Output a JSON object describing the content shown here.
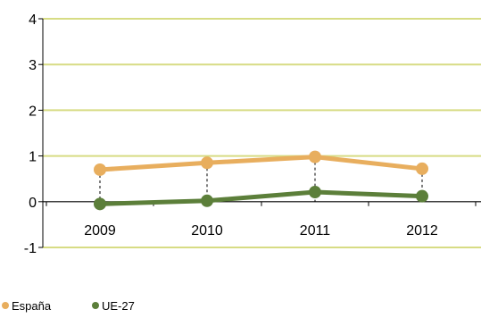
{
  "chart_data": {
    "type": "line",
    "title": "",
    "xlabel": "",
    "ylabel": "",
    "categories": [
      "2009",
      "2010",
      "2011",
      "2012"
    ],
    "ylim": [
      -1,
      4
    ],
    "yticks": [
      "4",
      "3",
      "2",
      "1",
      "0",
      "-1"
    ],
    "grid": true,
    "legend_position": "bottom-left",
    "series": [
      {
        "name": "España",
        "values": [
          0.7,
          0.85,
          0.98,
          0.72
        ],
        "color": "#E8AE5E"
      },
      {
        "name": "UE-27",
        "values": [
          -0.05,
          0.02,
          0.21,
          0.12
        ],
        "color": "#5C7F3A"
      }
    ],
    "colors": {
      "gridline": "#D7DC84",
      "axis": "#000000",
      "drop_line": "#000000"
    }
  }
}
